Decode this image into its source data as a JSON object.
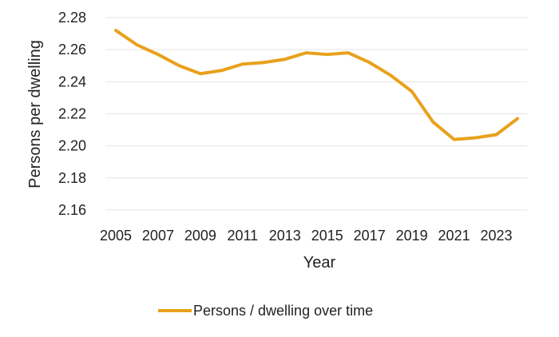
{
  "chart_data": {
    "type": "line",
    "title": "",
    "xlabel": "Year",
    "ylabel": "Persons per dwelling",
    "x": [
      2005,
      2006,
      2007,
      2008,
      2009,
      2010,
      2011,
      2012,
      2013,
      2014,
      2015,
      2016,
      2017,
      2018,
      2019,
      2020,
      2021,
      2022,
      2023,
      2024
    ],
    "series": [
      {
        "name": "Persons / dwelling over time",
        "color": "#E8A11C",
        "values": [
          2.272,
          2.263,
          2.257,
          2.25,
          2.245,
          2.247,
          2.251,
          2.252,
          2.254,
          2.258,
          2.257,
          2.258,
          2.252,
          2.244,
          2.234,
          2.215,
          2.204,
          2.205,
          2.207,
          2.217
        ]
      }
    ],
    "x_ticks": [
      "2005",
      "2007",
      "2009",
      "2011",
      "2013",
      "2015",
      "2017",
      "2019",
      "2021",
      "2023"
    ],
    "y_ticks": [
      "2.16",
      "2.18",
      "2.20",
      "2.22",
      "2.24",
      "2.26",
      "2.28"
    ],
    "ylim": [
      2.16,
      2.28
    ],
    "grid": true,
    "legend_position": "bottom"
  }
}
